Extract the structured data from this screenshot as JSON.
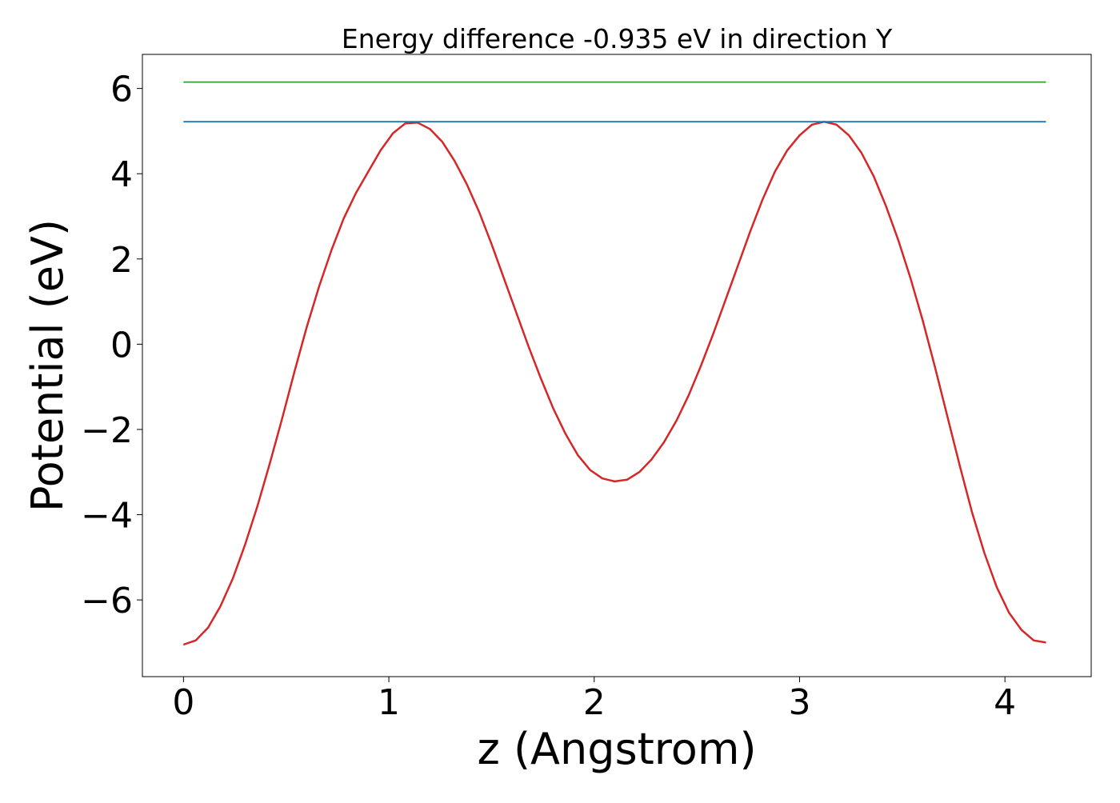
{
  "chart_data": {
    "type": "line",
    "title": "Energy difference -0.935 eV in direction Y",
    "xlabel": "z (Angstrom)",
    "ylabel": "Potential (eV)",
    "xlim": [
      -0.2,
      4.42
    ],
    "ylim": [
      -7.8,
      6.8
    ],
    "xticks": [
      0,
      1,
      2,
      3,
      4
    ],
    "xtick_labels": [
      "0",
      "1",
      "2",
      "3",
      "4"
    ],
    "yticks": [
      -6,
      -4,
      -2,
      0,
      2,
      4,
      6
    ],
    "ytick_labels": [
      "−6",
      "−4",
      "−2",
      "0",
      "2",
      "4",
      "6"
    ],
    "grid": false,
    "series": [
      {
        "kind": "curve",
        "color": "#d62728",
        "x": [
          0.0,
          0.06,
          0.12,
          0.18,
          0.24,
          0.3,
          0.36,
          0.42,
          0.48,
          0.54,
          0.6,
          0.66,
          0.72,
          0.78,
          0.84,
          0.9,
          0.96,
          1.02,
          1.08,
          1.14,
          1.2,
          1.26,
          1.32,
          1.38,
          1.44,
          1.5,
          1.56,
          1.62,
          1.68,
          1.74,
          1.8,
          1.86,
          1.92,
          1.98,
          2.04,
          2.1,
          2.16,
          2.22,
          2.28,
          2.34,
          2.4,
          2.46,
          2.52,
          2.58,
          2.64,
          2.7,
          2.76,
          2.82,
          2.88,
          2.94,
          3.0,
          3.06,
          3.12,
          3.18,
          3.24,
          3.3,
          3.36,
          3.42,
          3.48,
          3.54,
          3.6,
          3.66,
          3.72,
          3.78,
          3.84,
          3.9,
          3.96,
          4.02,
          4.08,
          4.14,
          4.2
        ],
        "y": [
          -7.05,
          -6.95,
          -6.65,
          -6.15,
          -5.5,
          -4.7,
          -3.8,
          -2.8,
          -1.75,
          -0.65,
          0.4,
          1.35,
          2.2,
          2.95,
          3.55,
          4.05,
          4.55,
          4.95,
          5.18,
          5.2,
          5.05,
          4.75,
          4.3,
          3.75,
          3.1,
          2.35,
          1.55,
          0.75,
          -0.05,
          -0.8,
          -1.5,
          -2.1,
          -2.6,
          -2.95,
          -3.15,
          -3.22,
          -3.18,
          -3.0,
          -2.7,
          -2.3,
          -1.8,
          -1.2,
          -0.5,
          0.25,
          1.05,
          1.85,
          2.65,
          3.4,
          4.05,
          4.55,
          4.9,
          5.15,
          5.22,
          5.15,
          4.9,
          4.5,
          3.95,
          3.25,
          2.45,
          1.55,
          0.55,
          -0.55,
          -1.7,
          -2.85,
          -3.95,
          -4.9,
          -5.7,
          -6.3,
          -6.7,
          -6.95,
          -7.0
        ]
      },
      {
        "kind": "hline",
        "color": "#2ca02c",
        "x": [
          0,
          4.2
        ],
        "y": [
          6.15,
          6.15
        ]
      },
      {
        "kind": "hline",
        "color": "#1f77b4",
        "x": [
          0,
          4.2
        ],
        "y": [
          5.22,
          5.22
        ]
      }
    ]
  }
}
